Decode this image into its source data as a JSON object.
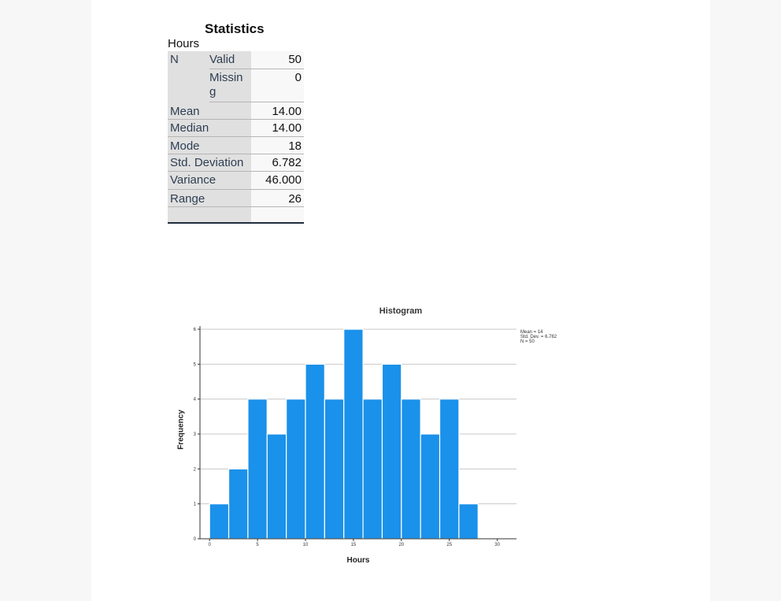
{
  "statistics": {
    "title": "Statistics",
    "variable": "Hours",
    "n_label": "N",
    "valid_label": "Valid",
    "valid_value": "50",
    "missing_label_line1": "Missin",
    "missing_label_line2": "g",
    "missing_value": "0",
    "rows": [
      {
        "label": "Mean",
        "value": "14.00"
      },
      {
        "label": "Median",
        "value": "14.00"
      },
      {
        "label": "Mode",
        "value": "18"
      },
      {
        "label": "Std. Deviation",
        "value": "6.782"
      },
      {
        "label": "Variance",
        "value": "46.000"
      },
      {
        "label": "Range",
        "value": "26"
      }
    ]
  },
  "chart_data": {
    "type": "bar",
    "title": "Histogram",
    "xlabel": "Hours",
    "ylabel": "Frequency",
    "bin_width": 2,
    "x": [
      1,
      3,
      5,
      7,
      9,
      11,
      13,
      15,
      17,
      19,
      21,
      23,
      25,
      27
    ],
    "values": [
      1,
      2,
      4,
      3,
      4,
      5,
      4,
      6,
      4,
      5,
      4,
      3,
      4,
      1
    ],
    "xlim": [
      -1,
      32
    ],
    "ylim": [
      0,
      6
    ],
    "xticks": [
      0,
      5,
      10,
      15,
      20,
      25,
      30
    ],
    "yticks": [
      0,
      1,
      2,
      3,
      4,
      5,
      6
    ],
    "grid": "horizontal",
    "bar_color": "#1a91ea",
    "legend": [
      "Mean = 14",
      "Std. Dev. = 6.782",
      "N = 50"
    ],
    "legend_position": "top-right"
  }
}
